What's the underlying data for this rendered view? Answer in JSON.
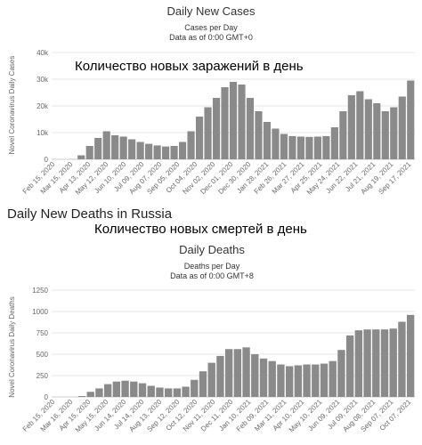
{
  "section_heading": "Daily New Deaths in Russia",
  "chart_data": [
    {
      "type": "bar",
      "title": "Daily New Cases",
      "subtitle_1": "Cases per Day",
      "subtitle_2": "Data as of 0:00 GMT+0",
      "overlay_label": "Количество новых заражений в день",
      "ylabel": "Novel Coronavirus Daily Cases",
      "ylim": [
        0,
        40000
      ],
      "yticks": [
        0,
        10000,
        20000,
        30000,
        40000
      ],
      "ytick_labels": [
        "0",
        "10k",
        "20k",
        "30k",
        "40k"
      ],
      "xtick_labels": [
        "Feb 15, 2020",
        "Mar 15, 2020",
        "Apr 13, 2020",
        "May 12, 2020",
        "Jun 10, 2020",
        "Jul 09, 2020",
        "Aug 07, 2020",
        "Sep 05, 2020",
        "Oct 04, 2020",
        "Nov 02, 2020",
        "Dec 01, 2020",
        "Dec 30, 2020",
        "Jan 28, 2021",
        "Feb 26, 2021",
        "Mar 27, 2021",
        "Apr 25, 2021",
        "May 24, 2021",
        "Jun 22, 2021",
        "Jul 21, 2021",
        "Aug 19, 2021",
        "Sep 17, 2021"
      ],
      "x": [
        "Feb 15, 2020",
        "Mar 01, 2020",
        "Mar 15, 2020",
        "Mar 29, 2020",
        "Apr 13, 2020",
        "Apr 27, 2020",
        "May 12, 2020",
        "May 26, 2020",
        "Jun 10, 2020",
        "Jun 24, 2020",
        "Jul 09, 2020",
        "Jul 23, 2020",
        "Aug 07, 2020",
        "Aug 21, 2020",
        "Sep 05, 2020",
        "Sep 19, 2020",
        "Oct 04, 2020",
        "Oct 18, 2020",
        "Nov 02, 2020",
        "Nov 16, 2020",
        "Dec 01, 2020",
        "Dec 15, 2020",
        "Dec 30, 2020",
        "Jan 13, 2021",
        "Jan 28, 2021",
        "Feb 11, 2021",
        "Feb 26, 2021",
        "Mar 12, 2021",
        "Mar 27, 2021",
        "Apr 10, 2021",
        "Apr 25, 2021",
        "May 09, 2021",
        "May 24, 2021",
        "Jun 07, 2021",
        "Jun 22, 2021",
        "Jul 06, 2021",
        "Jul 21, 2021",
        "Aug 04, 2021",
        "Aug 19, 2021",
        "Sep 02, 2021",
        "Sep 17, 2021",
        "Oct 01, 2021",
        "Oct 09, 2021"
      ],
      "values": [
        0,
        0,
        50,
        1500,
        5000,
        8000,
        10500,
        9000,
        8500,
        7500,
        6500,
        5800,
        5200,
        4800,
        5000,
        6500,
        10500,
        16000,
        19500,
        23000,
        27000,
        29000,
        28000,
        23000,
        18000,
        14000,
        11500,
        9500,
        8700,
        8500,
        8400,
        8500,
        8700,
        12000,
        18000,
        24000,
        25500,
        22500,
        21000,
        18000,
        19500,
        23500,
        29500
      ]
    },
    {
      "type": "bar",
      "title": "Daily Deaths",
      "subtitle_1": "Deaths per Day",
      "subtitle_2": "Data as of 0:00 GMT+8",
      "overlay_label": "Количество новых смертей в день",
      "ylabel": "Novel Coronavirus Daily Deaths",
      "ylim": [
        0,
        1250
      ],
      "yticks": [
        0,
        250,
        500,
        750,
        1000,
        1250
      ],
      "ytick_labels": [
        "0",
        "250",
        "500",
        "750",
        "1000",
        "1250"
      ],
      "xtick_labels": [
        "Feb 15, 2020",
        "Mar 16, 2020",
        "Apr 15, 2020",
        "May 15, 2020",
        "Jun 14, 2020",
        "Jul 14, 2020",
        "Aug 13, 2020",
        "Sep 12, 2020",
        "Oct 12, 2020",
        "Nov 11, 2020",
        "Dec 11, 2020",
        "Jan 10, 2021",
        "Feb 09, 2021",
        "Mar 11, 2021",
        "Apr 10, 2021",
        "May 10, 2021",
        "Jun 09, 2021",
        "Jul 09, 2021",
        "Aug 08, 2021",
        "Sep 07, 2021",
        "Oct 07, 2021"
      ],
      "x": [
        "Feb 15, 2020",
        "Mar 01, 2020",
        "Mar 16, 2020",
        "Mar 31, 2020",
        "Apr 15, 2020",
        "Apr 30, 2020",
        "May 15, 2020",
        "May 30, 2020",
        "Jun 14, 2020",
        "Jun 29, 2020",
        "Jul 14, 2020",
        "Jul 29, 2020",
        "Aug 13, 2020",
        "Aug 28, 2020",
        "Sep 12, 2020",
        "Sep 27, 2020",
        "Oct 12, 2020",
        "Oct 27, 2020",
        "Nov 11, 2020",
        "Nov 26, 2020",
        "Dec 11, 2020",
        "Dec 26, 2020",
        "Jan 10, 2021",
        "Jan 25, 2021",
        "Feb 09, 2021",
        "Feb 24, 2021",
        "Mar 11, 2021",
        "Mar 26, 2021",
        "Apr 10, 2021",
        "Apr 25, 2021",
        "May 10, 2021",
        "May 25, 2021",
        "Jun 09, 2021",
        "Jun 24, 2021",
        "Jul 09, 2021",
        "Jul 24, 2021",
        "Aug 08, 2021",
        "Aug 23, 2021",
        "Sep 07, 2021",
        "Sep 22, 2021",
        "Oct 07, 2021",
        "Oct 14, 2021"
      ],
      "values": [
        0,
        0,
        0,
        10,
        60,
        100,
        150,
        180,
        190,
        180,
        160,
        130,
        110,
        100,
        100,
        120,
        200,
        300,
        400,
        480,
        560,
        560,
        580,
        500,
        450,
        420,
        380,
        360,
        370,
        380,
        380,
        390,
        420,
        550,
        720,
        780,
        790,
        790,
        790,
        800,
        880,
        960
      ]
    }
  ]
}
